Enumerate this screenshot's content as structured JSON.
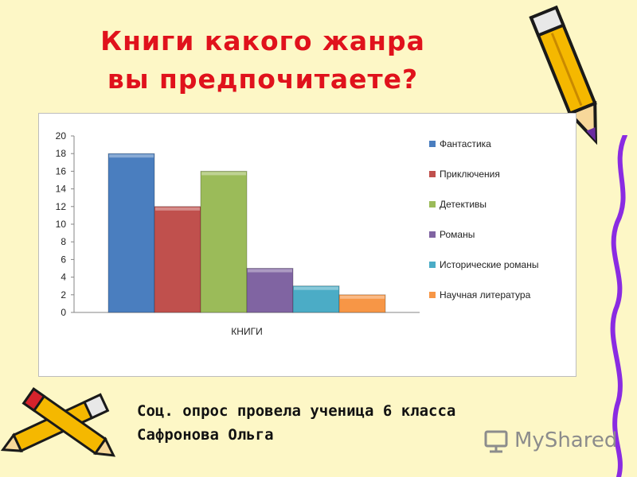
{
  "slide": {
    "title_line1": "Книги какого жанра",
    "title_line2": "вы предпочитаете?",
    "caption_line1": "Соц. опрос провела ученица 6 класса",
    "caption_line2": "Сафронова Ольга",
    "watermark": "MyShared"
  },
  "colors": {
    "background": "#fdf7c6",
    "title": "#e0121c",
    "pencil_body": "#f5b800",
    "pencil_outline": "#1a1a1a",
    "ribbon": "#8a2be2"
  },
  "icons": [
    "pencil-icon",
    "crossed-pencils-icon",
    "myshared-logo-icon"
  ],
  "chart_data": {
    "type": "bar",
    "xlabel": "КНИГИ",
    "ylabel": "",
    "ylim": [
      0,
      20
    ],
    "yticks": [
      0,
      2,
      4,
      6,
      8,
      10,
      12,
      14,
      16,
      18,
      20
    ],
    "grid": false,
    "legend_position": "right",
    "categories": [
      "КНИГИ"
    ],
    "series": [
      {
        "name": "Фантастика",
        "values": [
          18
        ],
        "color": "#4a7ebf"
      },
      {
        "name": "Приключения",
        "values": [
          12
        ],
        "color": "#c0504d"
      },
      {
        "name": "Детективы",
        "values": [
          16
        ],
        "color": "#9bbb59"
      },
      {
        "name": "Романы",
        "values": [
          5
        ],
        "color": "#8064a2"
      },
      {
        "name": "Исторические романы",
        "values": [
          3
        ],
        "color": "#4bacc6"
      },
      {
        "name": "Научная литература",
        "values": [
          2
        ],
        "color": "#f79646"
      }
    ]
  }
}
